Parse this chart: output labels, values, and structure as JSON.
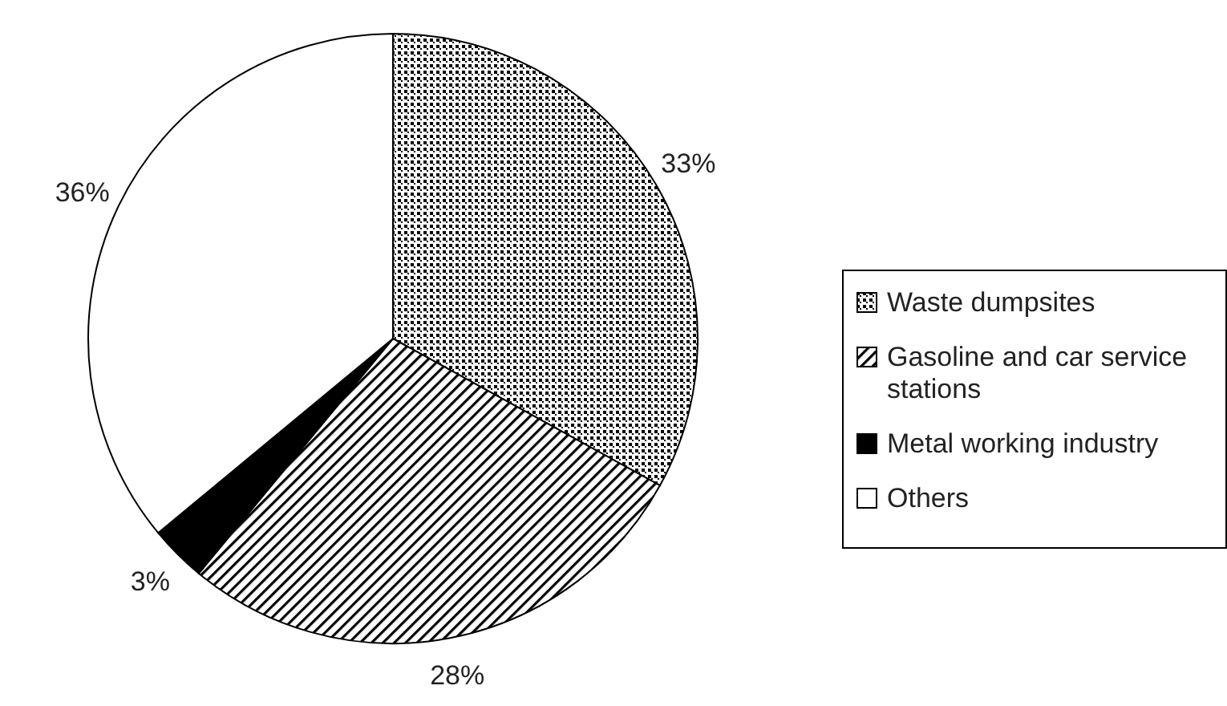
{
  "chart_data": {
    "type": "pie",
    "categories": [
      "Waste dumpsites",
      "Gasoline and car service stations",
      "Metal working industry",
      "Others"
    ],
    "values": [
      33,
      28,
      3,
      36
    ],
    "colors": [
      "#000000",
      "#000000",
      "#000000",
      "#ffffff"
    ],
    "value_labels": [
      "33%",
      "28%",
      "3%",
      "36%"
    ],
    "legend": "right"
  }
}
